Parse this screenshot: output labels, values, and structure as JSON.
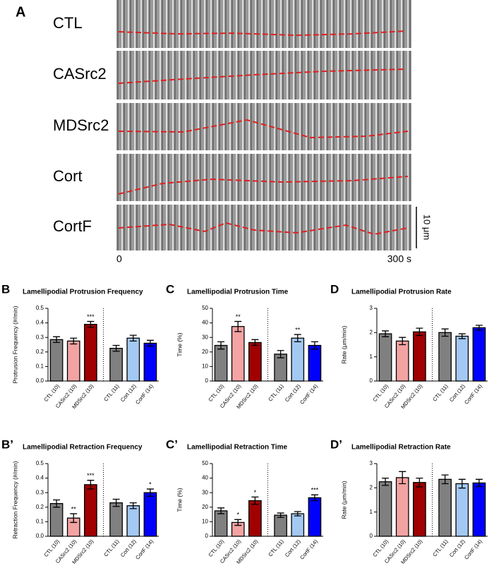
{
  "panel_a": {
    "label": "A",
    "rows": [
      "CTL",
      "CASrc2",
      "MDSrc2",
      "Cort",
      "CortF"
    ],
    "scale_bar": "10 μm",
    "time_start": "0",
    "time_end": "300 s"
  },
  "chart_data": [
    {
      "type": "bar",
      "panel": "B",
      "title": "Lamellipodial Protrusion Frequency",
      "ylabel": "Protrusion Frequency (#/min)",
      "categories": [
        "CTL (10)",
        "CASrc2 (10)",
        "MDSrc2 (10)",
        "CTL (11)",
        "Cort (12)",
        "CortF (14)"
      ],
      "values": [
        0.285,
        0.275,
        0.39,
        0.225,
        0.295,
        0.26
      ],
      "errors": [
        0.02,
        0.02,
        0.02,
        0.02,
        0.02,
        0.02
      ],
      "significance": [
        null,
        null,
        "***",
        null,
        null,
        null
      ],
      "colors": [
        "#808080",
        "#f4a3a3",
        "#a00000",
        "#808080",
        "#a3c8f2",
        "#0000ff"
      ],
      "ylim": [
        0,
        0.5
      ],
      "yticks": [
        {
          "value": 0,
          "label": "0.0"
        },
        0.1,
        0.2,
        0.3,
        0.4,
        0.5
      ]
    },
    {
      "type": "bar",
      "panel": "C",
      "title": "Lamellipodial Protrusion Time",
      "ylabel": "Time (%)",
      "categories": [
        "CTL (10)",
        "CASrc2 (10)",
        "MDSrc2 (10)",
        "CTL (11)",
        "Cort (12)",
        "CortF (14)"
      ],
      "values": [
        24.5,
        37.5,
        26.5,
        18.5,
        29.5,
        24.5
      ],
      "errors": [
        2.5,
        3.5,
        2,
        2.5,
        2.5,
        2.5
      ],
      "significance": [
        null,
        "**",
        null,
        null,
        "**",
        null
      ],
      "colors": [
        "#808080",
        "#f4a3a3",
        "#a00000",
        "#808080",
        "#a3c8f2",
        "#0000ff"
      ],
      "ylim": [
        0,
        50
      ],
      "yticks": [
        0,
        10,
        20,
        30,
        40,
        50
      ]
    },
    {
      "type": "bar",
      "panel": "D",
      "title": "Lamellipodial Protrusion Rate",
      "ylabel": "Rate (μm/min)",
      "categories": [
        "CTL (10)",
        "CASrc2 (10)",
        "MDSrc2 (10)",
        "CTL (11)",
        "Cort (12)",
        "CortF (14)"
      ],
      "values": [
        1.95,
        1.65,
        2.03,
        2.0,
        1.85,
        2.2
      ],
      "errors": [
        0.12,
        0.15,
        0.15,
        0.15,
        0.1,
        0.1
      ],
      "colors": [
        "#808080",
        "#f4a3a3",
        "#a00000",
        "#808080",
        "#a3c8f2",
        "#0000ff"
      ],
      "ylim": [
        0,
        3
      ],
      "yticks": [
        0,
        1,
        2,
        3
      ]
    },
    {
      "type": "bar",
      "panel": "B’",
      "title": "Lamellipodial Retraction Frequency",
      "ylabel": "Retraction Frequency (#/min)",
      "categories": [
        "CTL (10)",
        "CASrc2 (10)",
        "MDSrc2 (10)",
        "CTL (11)",
        "Cort (12)",
        "CortF (14)"
      ],
      "values": [
        0.225,
        0.125,
        0.355,
        0.23,
        0.21,
        0.3
      ],
      "errors": [
        0.025,
        0.03,
        0.03,
        0.025,
        0.02,
        0.025
      ],
      "significance": [
        null,
        "**",
        "***",
        null,
        null,
        "*"
      ],
      "colors": [
        "#808080",
        "#f4a3a3",
        "#a00000",
        "#808080",
        "#a3c8f2",
        "#0000ff"
      ],
      "ylim": [
        0,
        0.5
      ],
      "yticks": [
        {
          "value": 0,
          "label": "0.0"
        },
        0.1,
        0.2,
        0.3,
        0.4,
        0.5
      ]
    },
    {
      "type": "bar",
      "panel": "C’",
      "title": "Lamellipodial Retraction Time",
      "ylabel": "Time (%)",
      "categories": [
        "CTL (10)",
        "CASrc2 (10)",
        "MDSrc2 (10)",
        "CTL (11)",
        "Cort (12)",
        "CortF (14)"
      ],
      "values": [
        17.5,
        9.5,
        24.5,
        14.5,
        15.5,
        26.5
      ],
      "errors": [
        2,
        2,
        2.5,
        1.5,
        1.5,
        2
      ],
      "significance": [
        null,
        "*",
        "*",
        null,
        null,
        "***"
      ],
      "colors": [
        "#808080",
        "#f4a3a3",
        "#a00000",
        "#808080",
        "#a3c8f2",
        "#0000ff"
      ],
      "ylim": [
        0,
        50
      ],
      "yticks": [
        0,
        10,
        20,
        30,
        40,
        50
      ]
    },
    {
      "type": "bar",
      "panel": "D’",
      "title": "Lamellipodial Retraction Rate",
      "ylabel": "Rate (μm/min)",
      "categories": [
        "CTL (10)",
        "CASrc2 (10)",
        "MDSrc2 (10)",
        "CTL (11)",
        "Cort (12)",
        "CortF (14)"
      ],
      "values": [
        2.25,
        2.42,
        2.22,
        2.35,
        2.17,
        2.2
      ],
      "errors": [
        0.15,
        0.25,
        0.18,
        0.18,
        0.18,
        0.15
      ],
      "colors": [
        "#808080",
        "#f4a3a3",
        "#a00000",
        "#808080",
        "#a3c8f2",
        "#0000ff"
      ],
      "ylim": [
        0,
        3
      ],
      "yticks": [
        0,
        1,
        2,
        3
      ]
    }
  ]
}
